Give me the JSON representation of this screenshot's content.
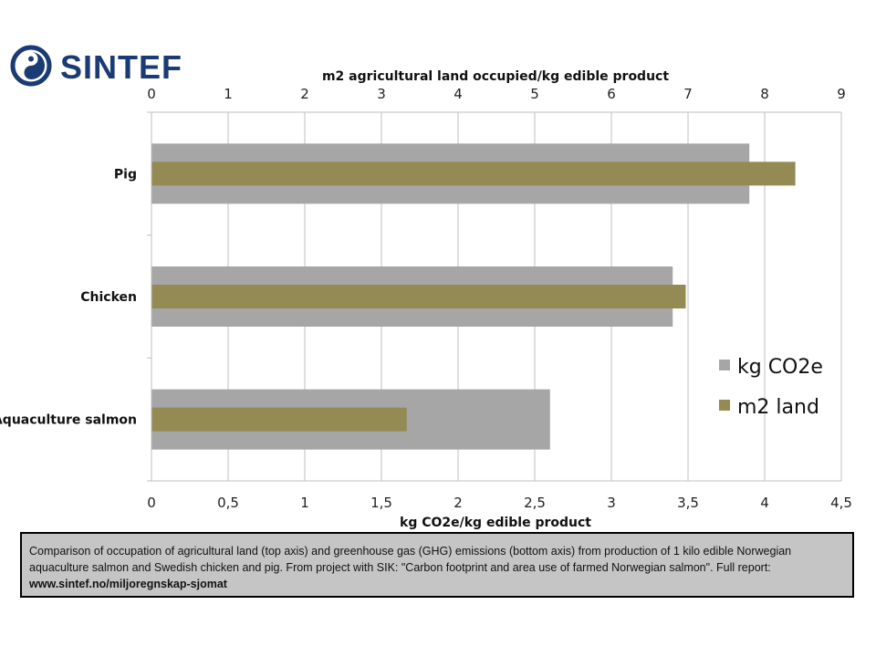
{
  "logo": {
    "text": "SINTEF",
    "brand_color": "#1a3b73"
  },
  "chart_data": {
    "type": "bar",
    "orientation": "horizontal",
    "categories": [
      "Pig",
      "Chicken",
      "Aquaculture salmon"
    ],
    "top_axis": {
      "label": "m2 agricultural land occupied/kg edible product",
      "range": [
        0,
        9
      ],
      "ticks": [
        "0",
        "1",
        "2",
        "3",
        "4",
        "5",
        "6",
        "7",
        "8",
        "9"
      ]
    },
    "bottom_axis": {
      "label": "kg CO2e/kg edible product",
      "range": [
        0,
        4.5
      ],
      "ticks": [
        "0",
        "0,5",
        "1",
        "1,5",
        "2",
        "2,5",
        "3",
        "3,5",
        "4",
        "4,5"
      ]
    },
    "series": [
      {
        "name": "kg CO2e",
        "axis": "bottom",
        "color": "#a6a6a6",
        "values": [
          3.9,
          3.4,
          2.6
        ]
      },
      {
        "name": "m2 land",
        "axis": "top",
        "color": "#948a54",
        "values": [
          8.4,
          6.97,
          3.33
        ]
      }
    ],
    "grid": "vertical",
    "legend_position": "right"
  },
  "caption": {
    "text": "Comparison of occupation of agricultural land  (top axis) and greenhouse gas  (GHG)  emissions  (bottom axis) from production  of 1 kilo edible Norwegian aquaculture salmon and Swedish chicken and pig. From project with SIK: \"Carbon footprint and area use of farmed Norwegian salmon\". Full report: ",
    "link": "www.sintef.no/miljoregnskap-sjomat"
  }
}
